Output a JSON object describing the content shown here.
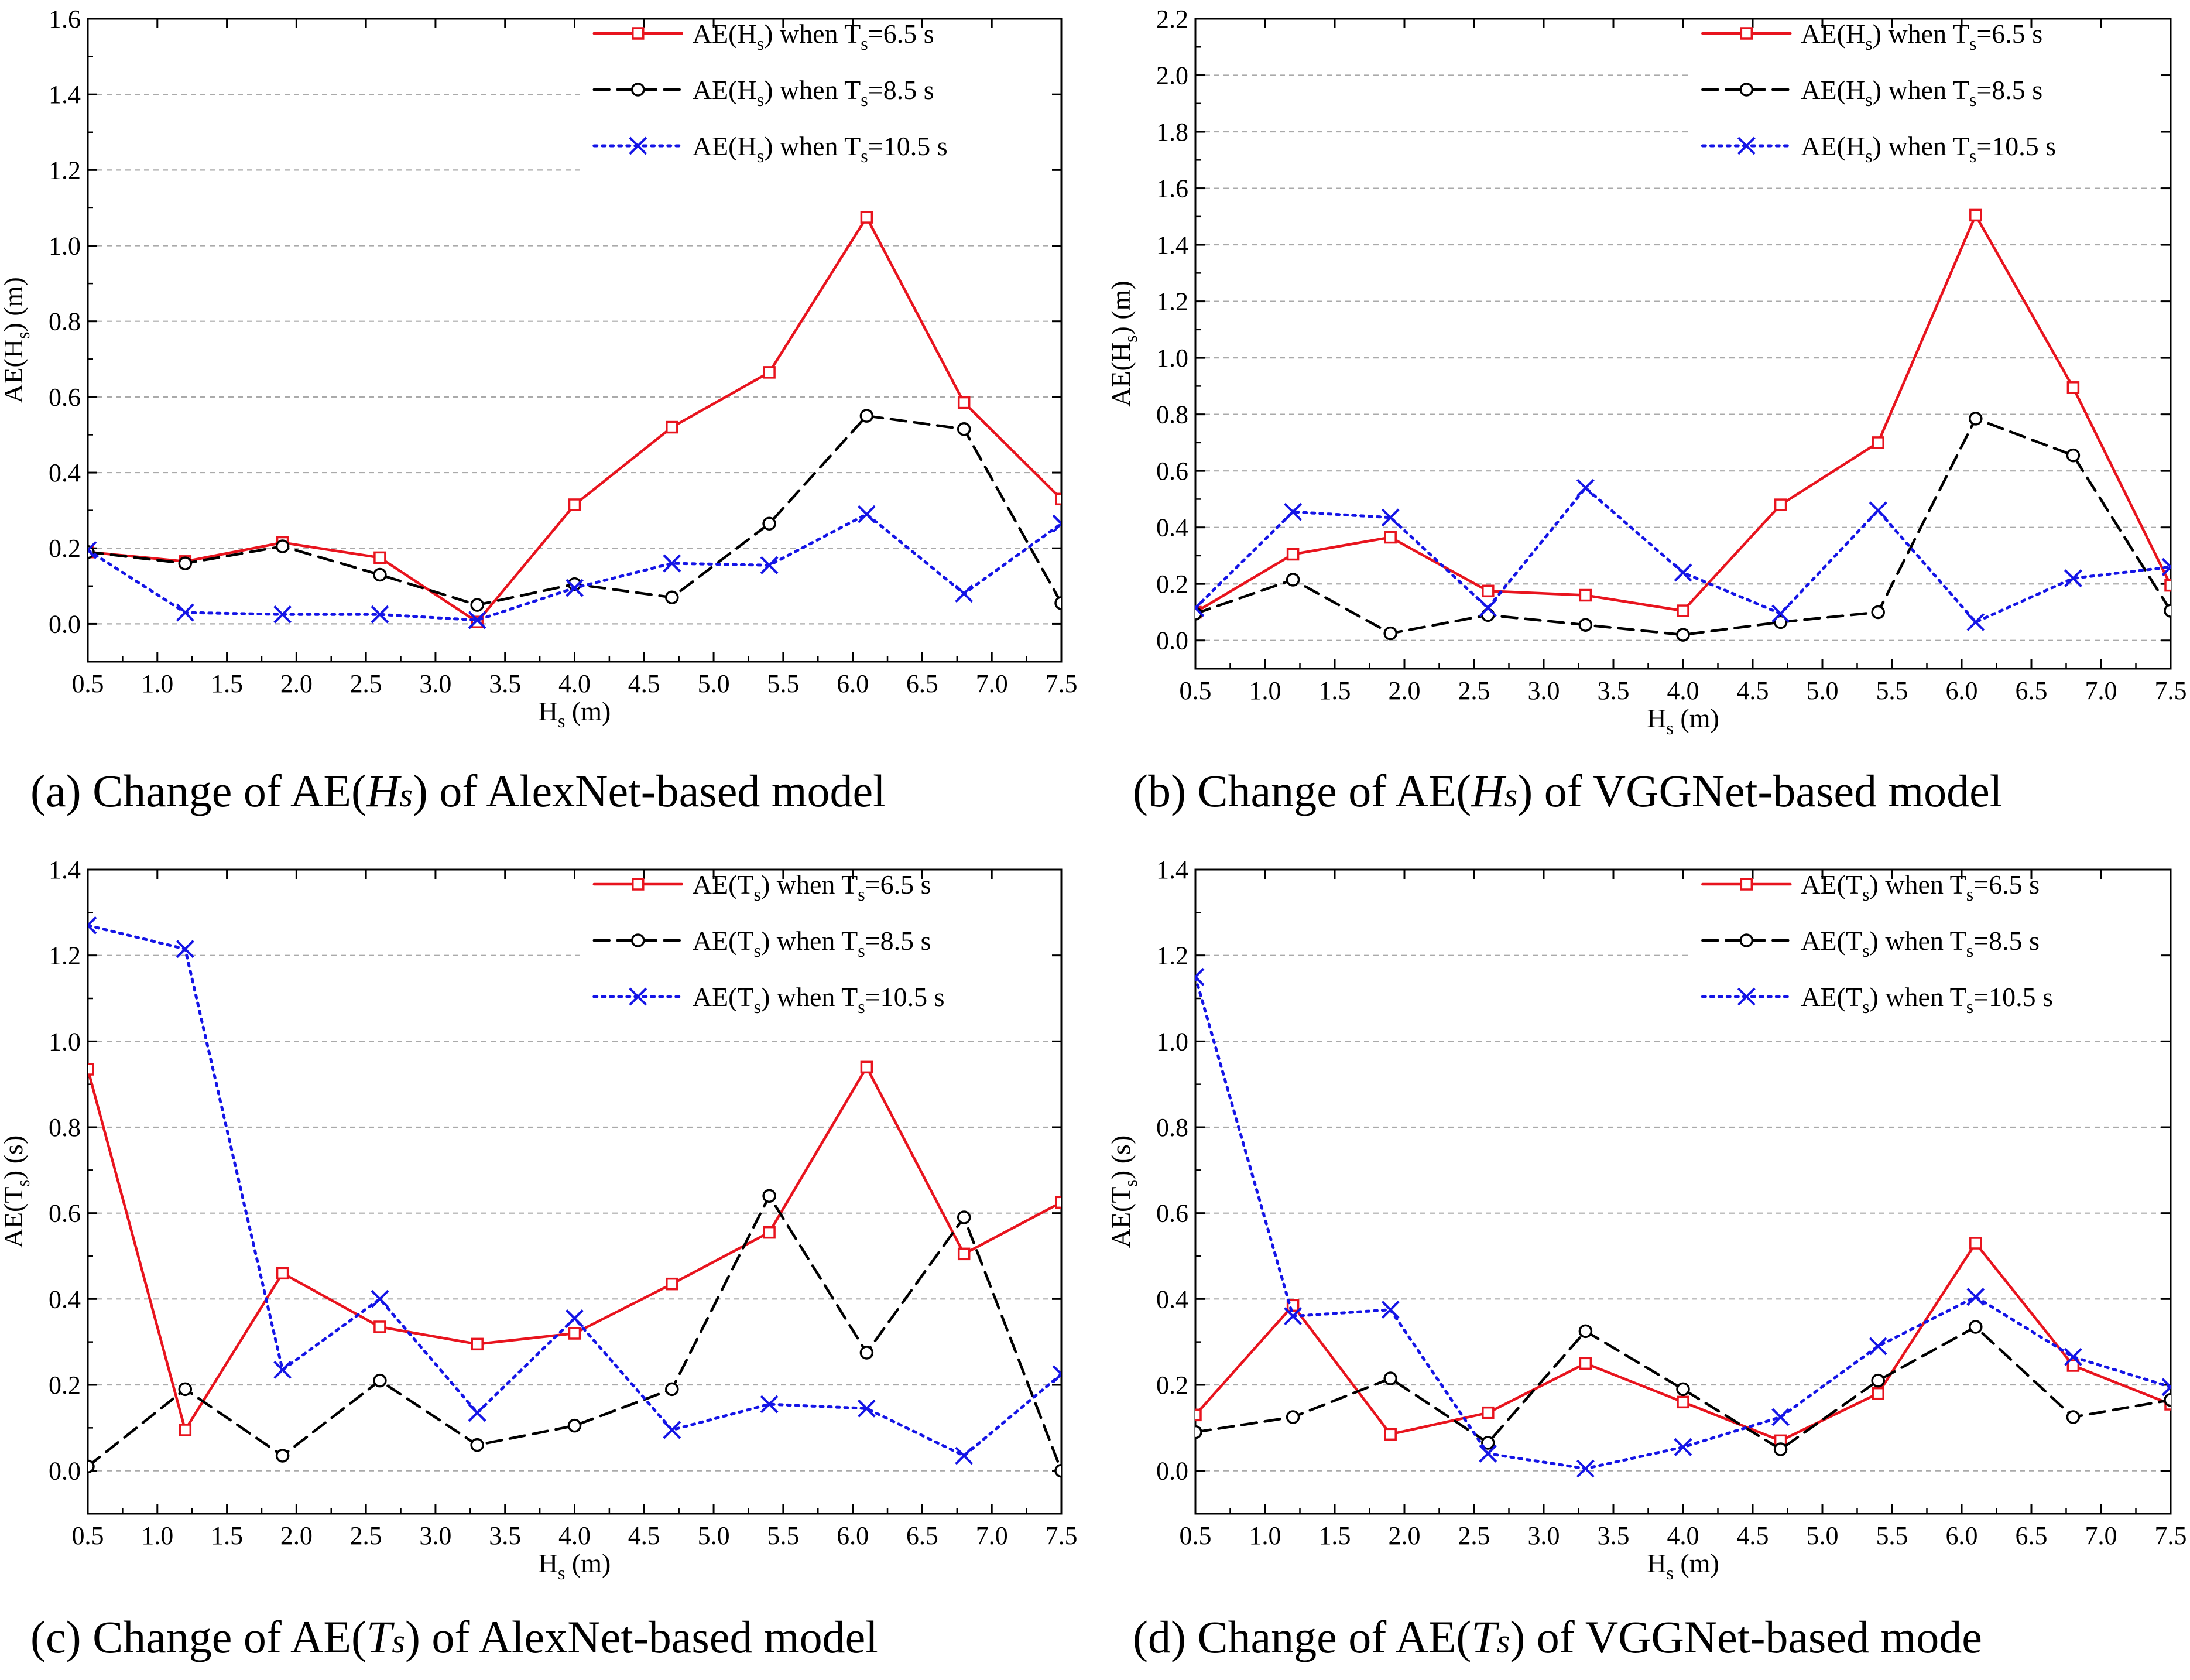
{
  "figure": {
    "series_styles": [
      {
        "color": "#e8141e",
        "dash": "solid",
        "marker": "square"
      },
      {
        "color": "#000000",
        "dash": "dashed",
        "marker": "circle"
      },
      {
        "color": "#1414e6",
        "dash": "dotted",
        "marker": "x"
      }
    ]
  },
  "chart_data": [
    {
      "type": "line",
      "panel": "a",
      "caption": {
        "prefix": "(a) Change of AE(",
        "var": "Hs",
        "suffix": ") of AlexNet-based model"
      },
      "xlabel": {
        "main": "H",
        "sub": "s",
        "rest": " (m)"
      },
      "ylabel": {
        "pre": "AE(H",
        "sub": "s",
        "post": ") (m)"
      },
      "xlim": [
        0.5,
        7.5
      ],
      "ylim": [
        -0.1,
        1.6
      ],
      "xticks": [
        "0.5",
        "1.0",
        "1.5",
        "2.0",
        "2.5",
        "3.0",
        "3.5",
        "4.0",
        "4.5",
        "5.0",
        "5.5",
        "6.0",
        "6.5",
        "7.0",
        "7.5"
      ],
      "yticks": [
        "0.0",
        "0.2",
        "0.4",
        "0.6",
        "0.8",
        "1.0",
        "1.2",
        "1.4",
        "1.6"
      ],
      "x": [
        0.5,
        1.2,
        1.9,
        2.6,
        3.3,
        4.0,
        4.7,
        5.4,
        6.1,
        6.8,
        7.5
      ],
      "series": [
        {
          "legend": {
            "pre": "AE(H",
            "sub1": "s",
            "mid": ") when T",
            "sub2": "s",
            "post": "=6.5 s"
          },
          "values": [
            0.19,
            0.165,
            0.215,
            0.175,
            0.005,
            0.315,
            0.52,
            0.665,
            1.075,
            0.585,
            0.33
          ]
        },
        {
          "legend": {
            "pre": "AE(H",
            "sub1": "s",
            "mid": ") when T",
            "sub2": "s",
            "post": "=8.5 s"
          },
          "values": [
            0.19,
            0.16,
            0.205,
            0.13,
            0.05,
            0.105,
            0.07,
            0.265,
            0.55,
            0.515,
            0.055
          ]
        },
        {
          "legend": {
            "pre": "AE(H",
            "sub1": "s",
            "mid": ") when T",
            "sub2": "s",
            "post": "=10.5 s"
          },
          "values": [
            0.195,
            0.03,
            0.025,
            0.025,
            0.01,
            0.095,
            0.16,
            0.155,
            0.29,
            0.08,
            0.265
          ]
        }
      ]
    },
    {
      "type": "line",
      "panel": "b",
      "caption": {
        "prefix": "(b) Change of AE(",
        "var": "Hs",
        "suffix": ") of VGGNet-based model"
      },
      "xlabel": {
        "main": "H",
        "sub": "s",
        "rest": " (m)"
      },
      "ylabel": {
        "pre": "AE(H",
        "sub": "s",
        "post": ") (m)"
      },
      "xlim": [
        0.5,
        7.5
      ],
      "ylim": [
        -0.1,
        2.2
      ],
      "xticks": [
        "0.5",
        "1.0",
        "1.5",
        "2.0",
        "2.5",
        "3.0",
        "3.5",
        "4.0",
        "4.5",
        "5.0",
        "5.5",
        "6.0",
        "6.5",
        "7.0",
        "7.5"
      ],
      "yticks": [
        "0.0",
        "0.2",
        "0.4",
        "0.6",
        "0.8",
        "1.0",
        "1.2",
        "1.4",
        "1.6",
        "1.8",
        "2.0",
        "2.2"
      ],
      "x": [
        0.5,
        1.2,
        1.9,
        2.6,
        3.3,
        4.0,
        4.7,
        5.4,
        6.1,
        6.8,
        7.5
      ],
      "series": [
        {
          "legend": {
            "pre": "AE(H",
            "sub1": "s",
            "mid": ") when T",
            "sub2": "s",
            "post": "=6.5 s"
          },
          "values": [
            0.1,
            0.305,
            0.365,
            0.175,
            0.16,
            0.105,
            0.48,
            0.7,
            1.505,
            0.895,
            0.195
          ]
        },
        {
          "legend": {
            "pre": "AE(H",
            "sub1": "s",
            "mid": ") when T",
            "sub2": "s",
            "post": "=8.5 s"
          },
          "values": [
            0.095,
            0.215,
            0.025,
            0.09,
            0.055,
            0.02,
            0.065,
            0.1,
            0.785,
            0.655,
            0.105
          ]
        },
        {
          "legend": {
            "pre": "AE(H",
            "sub1": "s",
            "mid": ") when T",
            "sub2": "s",
            "post": "=10.5 s"
          },
          "values": [
            0.115,
            0.455,
            0.435,
            0.115,
            0.54,
            0.24,
            0.095,
            0.46,
            0.065,
            0.22,
            0.26
          ]
        }
      ]
    },
    {
      "type": "line",
      "panel": "c",
      "caption": {
        "prefix": "(c) Change of AE(",
        "var": "Ts",
        "suffix": ") of AlexNet-based model"
      },
      "xlabel": {
        "main": "H",
        "sub": "s",
        "rest": " (m)"
      },
      "ylabel": {
        "pre": "AE(T",
        "sub": "s",
        "post": ") (s)"
      },
      "xlim": [
        0.5,
        7.5
      ],
      "ylim": [
        -0.1,
        1.4
      ],
      "xticks": [
        "0.5",
        "1.0",
        "1.5",
        "2.0",
        "2.5",
        "3.0",
        "3.5",
        "4.0",
        "4.5",
        "5.0",
        "5.5",
        "6.0",
        "6.5",
        "7.0",
        "7.5"
      ],
      "yticks": [
        "0.0",
        "0.2",
        "0.4",
        "0.6",
        "0.8",
        "1.0",
        "1.2",
        "1.4"
      ],
      "x": [
        0.5,
        1.2,
        1.9,
        2.6,
        3.3,
        4.0,
        4.7,
        5.4,
        6.1,
        6.8,
        7.5
      ],
      "series": [
        {
          "legend": {
            "pre": "AE(T",
            "sub1": "s",
            "mid": ") when T",
            "sub2": "s",
            "post": "=6.5 s"
          },
          "values": [
            0.935,
            0.095,
            0.46,
            0.335,
            0.295,
            0.32,
            0.435,
            0.555,
            0.94,
            0.505,
            0.625
          ]
        },
        {
          "legend": {
            "pre": "AE(T",
            "sub1": "s",
            "mid": ") when T",
            "sub2": "s",
            "post": "=8.5 s"
          },
          "values": [
            0.01,
            0.19,
            0.035,
            0.21,
            0.06,
            0.105,
            0.19,
            0.64,
            0.275,
            0.59,
            0.0
          ]
        },
        {
          "legend": {
            "pre": "AE(T",
            "sub1": "s",
            "mid": ") when T",
            "sub2": "s",
            "post": "=10.5 s"
          },
          "values": [
            1.27,
            1.215,
            0.235,
            0.4,
            0.135,
            0.355,
            0.095,
            0.155,
            0.145,
            0.035,
            0.225
          ]
        }
      ]
    },
    {
      "type": "line",
      "panel": "d",
      "caption": {
        "prefix": "(d) Change of AE(",
        "var": "Ts",
        "suffix": ") of VGGNet-based mode"
      },
      "xlabel": {
        "main": "H",
        "sub": "s",
        "rest": " (m)"
      },
      "ylabel": {
        "pre": "AE(T",
        "sub": "s",
        "post": ") (s)"
      },
      "xlim": [
        0.5,
        7.5
      ],
      "ylim": [
        -0.1,
        1.4
      ],
      "xticks": [
        "0.5",
        "1.0",
        "1.5",
        "2.0",
        "2.5",
        "3.0",
        "3.5",
        "4.0",
        "4.5",
        "5.0",
        "5.5",
        "6.0",
        "6.5",
        "7.0",
        "7.5"
      ],
      "yticks": [
        "0.0",
        "0.2",
        "0.4",
        "0.6",
        "0.8",
        "1.0",
        "1.2",
        "1.4"
      ],
      "x": [
        0.5,
        1.2,
        1.9,
        2.6,
        3.3,
        4.0,
        4.7,
        5.4,
        6.1,
        6.8,
        7.5
      ],
      "series": [
        {
          "legend": {
            "pre": "AE(T",
            "sub1": "s",
            "mid": ") when T",
            "sub2": "s",
            "post": "=6.5 s"
          },
          "values": [
            0.13,
            0.385,
            0.085,
            0.135,
            0.25,
            0.16,
            0.07,
            0.18,
            0.53,
            0.245,
            0.155
          ]
        },
        {
          "legend": {
            "pre": "AE(T",
            "sub1": "s",
            "mid": ") when T",
            "sub2": "s",
            "post": "=8.5 s"
          },
          "values": [
            0.09,
            0.125,
            0.215,
            0.065,
            0.325,
            0.19,
            0.05,
            0.21,
            0.335,
            0.125,
            0.165
          ]
        },
        {
          "legend": {
            "pre": "AE(T",
            "sub1": "s",
            "mid": ") when T",
            "sub2": "s",
            "post": "=10.5 s"
          },
          "values": [
            1.15,
            0.36,
            0.375,
            0.04,
            0.005,
            0.055,
            0.125,
            0.29,
            0.405,
            0.265,
            0.195
          ]
        }
      ]
    }
  ]
}
